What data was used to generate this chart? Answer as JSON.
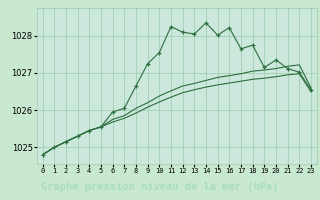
{
  "fig_bg_color": "#c8e8d0",
  "plot_bg_color": "#cce8dc",
  "grid_color": "#99ccaa",
  "line_color": "#2d6e3e",
  "title": "Graphe pression niveau de la mer (hPa)",
  "title_fontsize": 7.5,
  "title_bg_color": "#336644",
  "title_text_color": "#aaddbb",
  "xlim": [
    -0.5,
    23.5
  ],
  "ylim": [
    1024.55,
    1028.75
  ],
  "yticks": [
    1025,
    1026,
    1027,
    1028
  ],
  "ylabel_fontsize": 6,
  "xtick_fontsize": 5,
  "series": [
    {
      "y": [
        1024.8,
        1025.0,
        1025.15,
        1025.3,
        1025.45,
        1025.55,
        1025.95,
        1026.05,
        1026.65,
        1027.25,
        1027.55,
        1028.25,
        1028.1,
        1028.05,
        1028.35,
        1028.02,
        1028.22,
        1027.65,
        1027.75,
        1027.15,
        1027.35,
        1027.12,
        1027.02,
        1026.55
      ],
      "marker": true
    },
    {
      "y": [
        1024.8,
        1025.0,
        1025.15,
        1025.3,
        1025.45,
        1025.55,
        1025.75,
        1025.85,
        1026.05,
        1026.2,
        1026.38,
        1026.52,
        1026.65,
        1026.72,
        1026.8,
        1026.88,
        1026.93,
        1026.98,
        1027.05,
        1027.08,
        1027.12,
        1027.18,
        1027.22,
        1026.6
      ],
      "marker": false
    },
    {
      "y": [
        1024.8,
        1025.0,
        1025.15,
        1025.3,
        1025.45,
        1025.55,
        1025.68,
        1025.78,
        1025.92,
        1026.08,
        1026.22,
        1026.35,
        1026.47,
        1026.55,
        1026.62,
        1026.68,
        1026.73,
        1026.78,
        1026.83,
        1026.86,
        1026.9,
        1026.95,
        1026.98,
        1026.5
      ],
      "marker": false
    }
  ]
}
